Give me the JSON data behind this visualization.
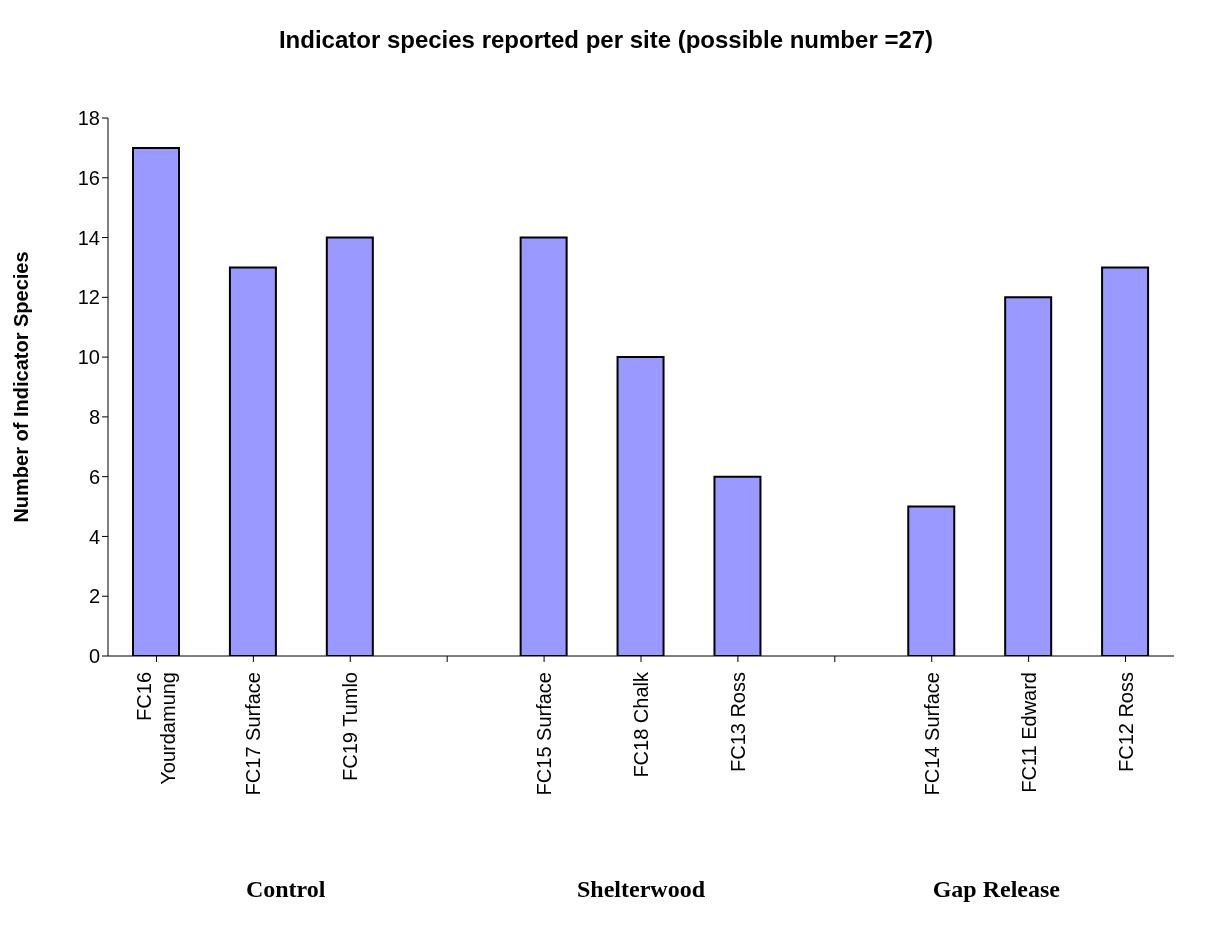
{
  "chart_data": {
    "type": "bar",
    "title": "Indicator species reported per site (possible number =27)",
    "ylabel": "Number of Indicator Species",
    "categories": [
      "FC16 Yourdamung",
      "FC17 Surface",
      "FC19 Tumlo",
      null,
      "FC15 Surface",
      "FC18 Chalk",
      "FC13 Ross",
      null,
      "FC14 Surface",
      "FC11 Edward",
      "FC12 Ross"
    ],
    "values": [
      17,
      13,
      14,
      null,
      14,
      10,
      6,
      null,
      5,
      12,
      13
    ],
    "color": "#9999ff",
    "ylim": [
      0,
      18
    ],
    "yticks": [
      0,
      2,
      4,
      6,
      8,
      10,
      12,
      14,
      16,
      18
    ],
    "annotations": [
      "Control",
      "Shelterwood",
      "Gap Release"
    ]
  }
}
